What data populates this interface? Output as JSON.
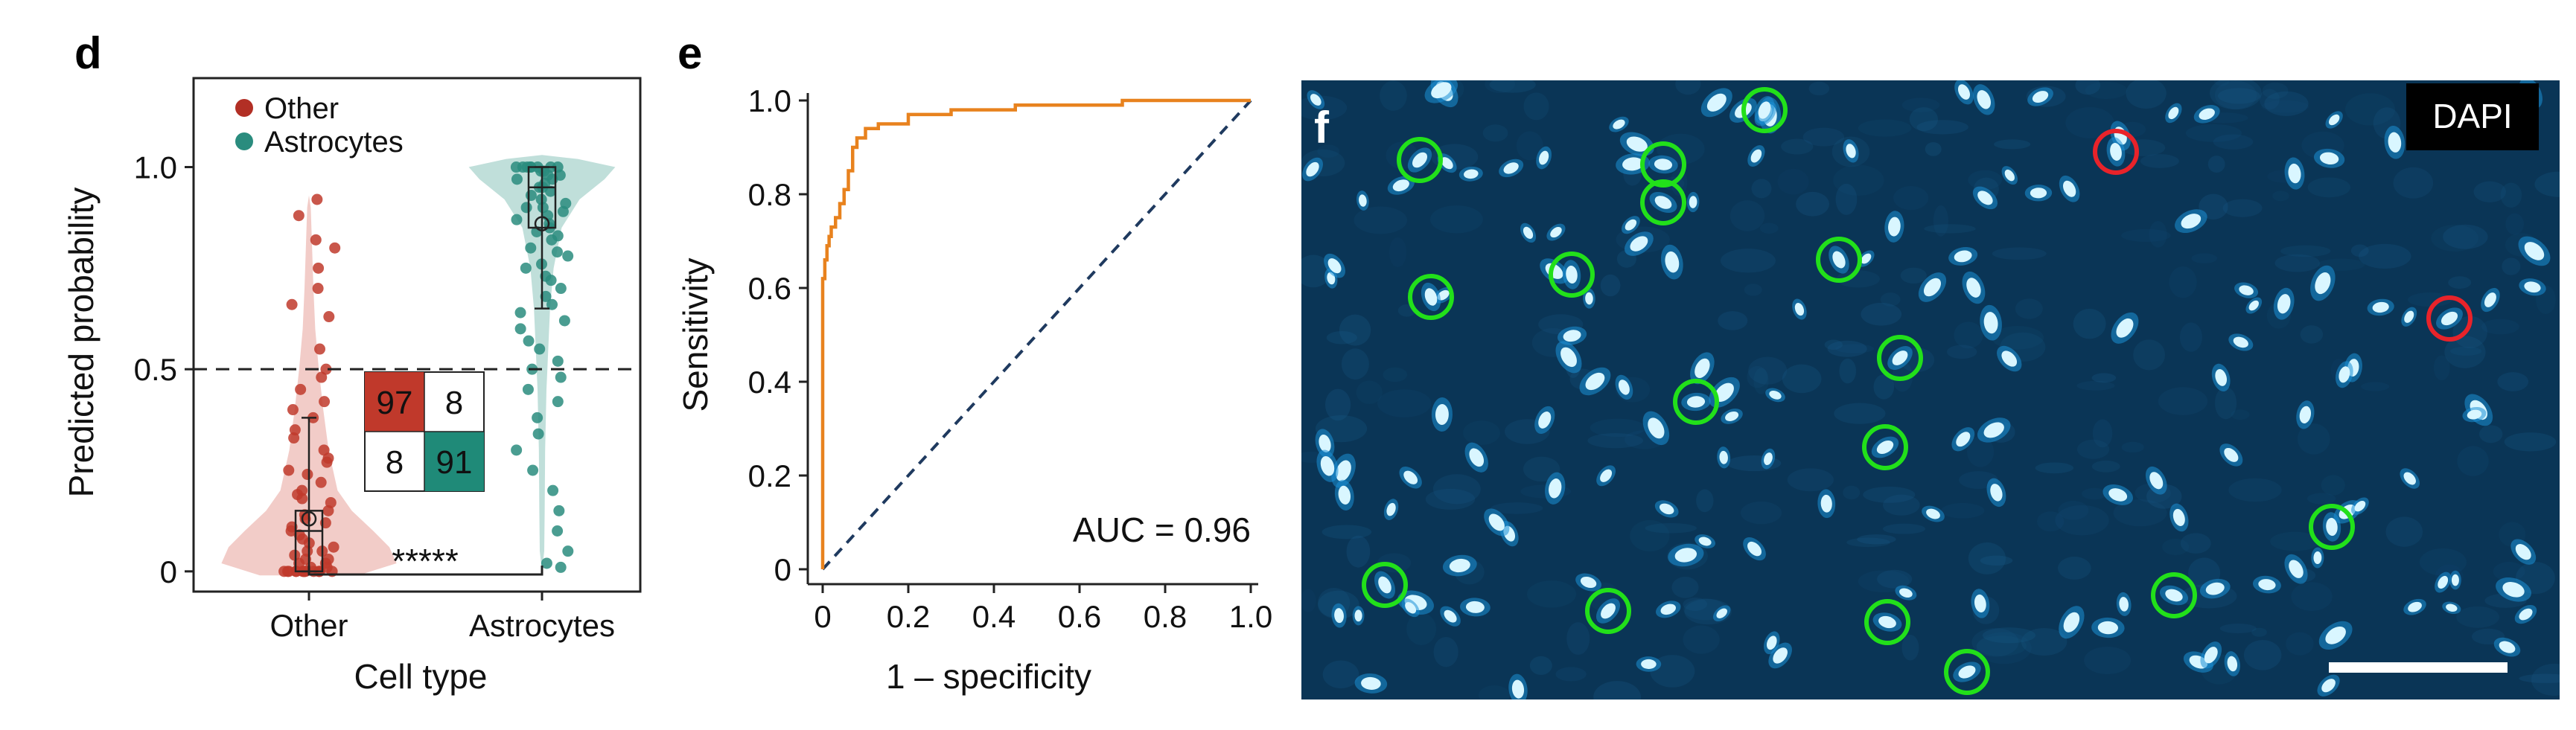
{
  "panels": {
    "d": "d",
    "e": "e",
    "f": "f"
  },
  "colors": {
    "other": "#c0392b",
    "other_light": "#e8a39b",
    "astro": "#2a8c7e",
    "astro_light": "#8cc5bb",
    "roc": "#e8821e",
    "diag": "#1f3a5f",
    "circle_green": "#22e01a",
    "circle_red": "#e8232a",
    "image_bg": "#0a3556"
  },
  "chart_data": [
    {
      "panel": "d",
      "type": "violin",
      "xlabel": "Cell type",
      "ylabel": "Predicted probability",
      "categories": [
        "Other",
        "Astrocytes"
      ],
      "yticks": [
        "0",
        "0.5",
        "1.0"
      ],
      "ytick_values": [
        0,
        0.5,
        1.0
      ],
      "ylim": [
        -0.05,
        1.22
      ],
      "threshold": 0.5,
      "legend": [
        "Other",
        "Astrocytes"
      ],
      "legend_position": "top-left",
      "significance": "*****",
      "box": {
        "Other": {
          "q1": 0.0,
          "median": 0.1,
          "q3": 0.15,
          "whisker_low": 0.0,
          "whisker_high": 0.38
        },
        "Astrocytes": {
          "q1": 0.85,
          "median": 0.95,
          "q3": 1.0,
          "whisker_low": 0.65,
          "whisker_high": 1.0
        }
      },
      "mean": {
        "Other": 0.13,
        "Astrocytes": 0.86
      },
      "confusion_matrix": [
        [
          "97",
          "8"
        ],
        [
          "8",
          "91"
        ]
      ]
    },
    {
      "panel": "e",
      "type": "line",
      "xlabel": "1 – specificity",
      "ylabel": "Sensitivity",
      "xticks": [
        "0",
        "0.2",
        "0.4",
        "0.6",
        "0.8",
        "1.0"
      ],
      "yticks": [
        "0",
        "0.2",
        "0.4",
        "0.6",
        "0.8",
        "1.0"
      ],
      "tick_values": [
        0,
        0.2,
        0.4,
        0.6,
        0.8,
        1.0
      ],
      "xlim": [
        0,
        1
      ],
      "ylim": [
        0,
        1
      ],
      "annotation": "AUC = 0.96",
      "series": [
        {
          "x": [
            0,
            0,
            0.005,
            0.005,
            0.01,
            0.01,
            0.015,
            0.015,
            0.02,
            0.02,
            0.03,
            0.03,
            0.04,
            0.04,
            0.05,
            0.05,
            0.06,
            0.06,
            0.07,
            0.07,
            0.08,
            0.08,
            0.1,
            0.1,
            0.13,
            0.13,
            0.2,
            0.2,
            0.3,
            0.3,
            0.45,
            0.45,
            0.7,
            0.7,
            1.0
          ],
          "y": [
            0,
            0.62,
            0.62,
            0.66,
            0.66,
            0.69,
            0.69,
            0.71,
            0.71,
            0.73,
            0.73,
            0.75,
            0.75,
            0.78,
            0.78,
            0.81,
            0.81,
            0.85,
            0.85,
            0.9,
            0.9,
            0.92,
            0.92,
            0.94,
            0.94,
            0.95,
            0.95,
            0.97,
            0.97,
            0.98,
            0.98,
            0.99,
            0.99,
            1.0,
            1.0
          ]
        },
        {
          "x": [
            0,
            1
          ],
          "y": [
            0,
            1
          ],
          "style": "dashed"
        }
      ]
    }
  ],
  "image_f": {
    "label": "DAPI"
  }
}
